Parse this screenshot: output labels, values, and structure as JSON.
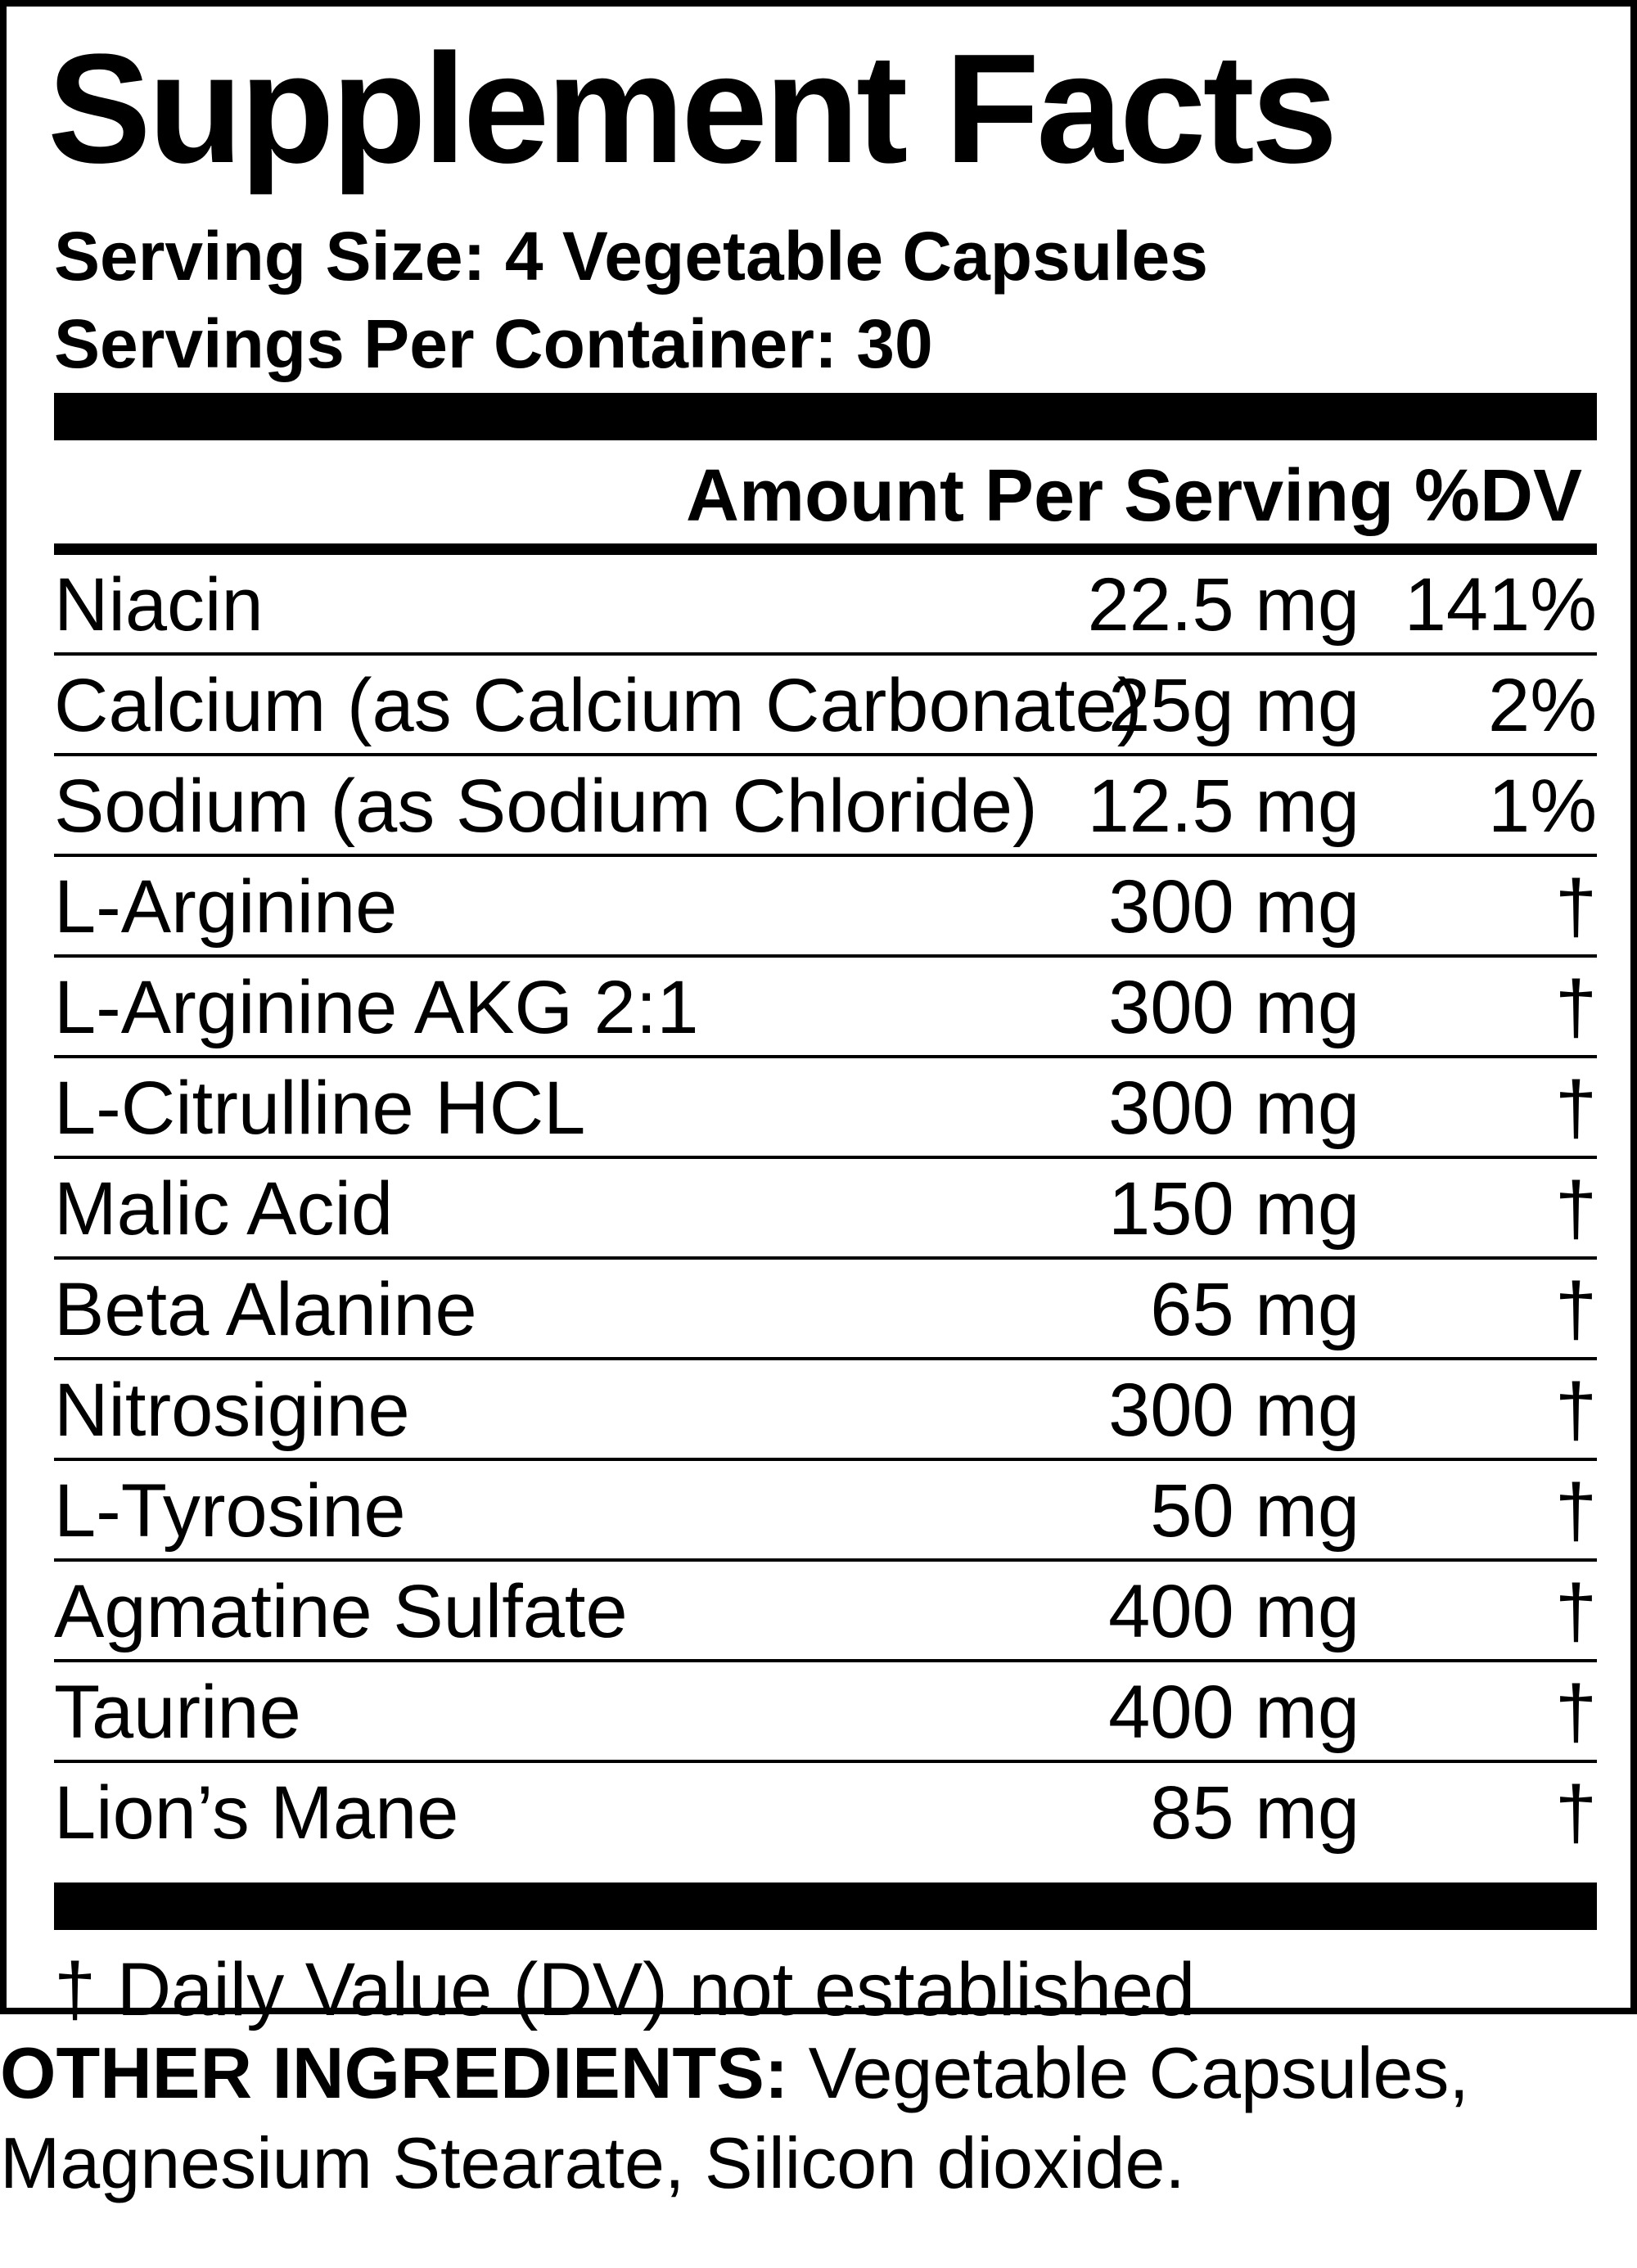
{
  "panel": {
    "title": "Supplement Facts",
    "serving_size": "Serving Size: 4 Vegetable Capsules",
    "servings_per_container": "Servings Per Container: 30",
    "header_amount": "Amount Per Serving",
    "header_dv": "%DV",
    "rows": [
      {
        "name": "Niacin",
        "amount": "22.5 mg",
        "dv": "141%"
      },
      {
        "name": "Calcium (as Calcium Carbonate)",
        "amount": "25g mg",
        "dv": "2%"
      },
      {
        "name": "Sodium (as Sodium Chloride)",
        "amount": "12.5 mg",
        "dv": "1%"
      },
      {
        "name": "L-Arginine",
        "amount": "300 mg",
        "dv": "†"
      },
      {
        "name": "L-Arginine AKG 2:1",
        "amount": "300 mg",
        "dv": "†"
      },
      {
        "name": "L-Citrulline HCL",
        "amount": "300 mg",
        "dv": "†"
      },
      {
        "name": "Malic Acid",
        "amount": "150 mg",
        "dv": "†"
      },
      {
        "name": "Beta Alanine",
        "amount": "65 mg",
        "dv": "†"
      },
      {
        "name": "Nitrosigine",
        "amount": "300 mg",
        "dv": "†"
      },
      {
        "name": "L-Tyrosine",
        "amount": "50 mg",
        "dv": "†"
      },
      {
        "name": "Agmatine Sulfate",
        "amount": "400 mg",
        "dv": "†"
      },
      {
        "name": "Taurine",
        "amount": "400 mg",
        "dv": "†"
      },
      {
        "name": "Lion’s Mane",
        "amount": "85 mg",
        "dv": "†"
      }
    ],
    "footnote": "† Daily Value (DV) not established"
  },
  "other_ingredients": {
    "label": "OTHER INGREDIENTS:",
    "text": " Vegetable Capsules, Magnesium Stearate, Silicon dioxide."
  }
}
